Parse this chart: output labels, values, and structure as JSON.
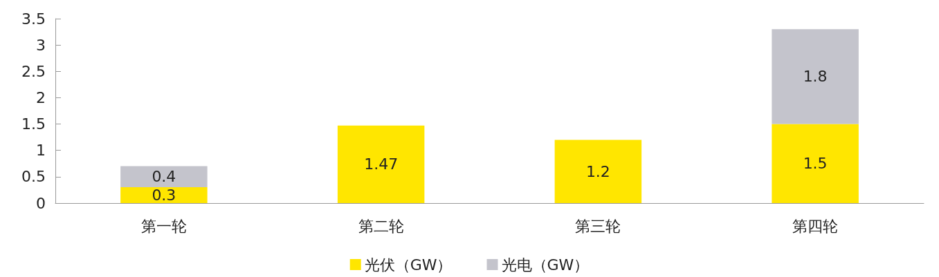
{
  "chart_data": {
    "type": "bar",
    "stacked": true,
    "categories": [
      "第一轮",
      "第二轮",
      "第三轮",
      "第四轮"
    ],
    "series": [
      {
        "name": "光伏（GW）",
        "color": "#ffe600",
        "values": [
          0.3,
          1.47,
          1.2,
          1.5
        ]
      },
      {
        "name": "光电（GW）",
        "color": "#c4c4cc",
        "values": [
          0.4,
          null,
          null,
          1.8
        ]
      }
    ],
    "ylim": [
      0,
      3.5
    ],
    "yticks": [
      0,
      0.5,
      1,
      1.5,
      2,
      2.5,
      3,
      3.5
    ],
    "grid": false,
    "legend": "bottom",
    "data_labels": true
  }
}
